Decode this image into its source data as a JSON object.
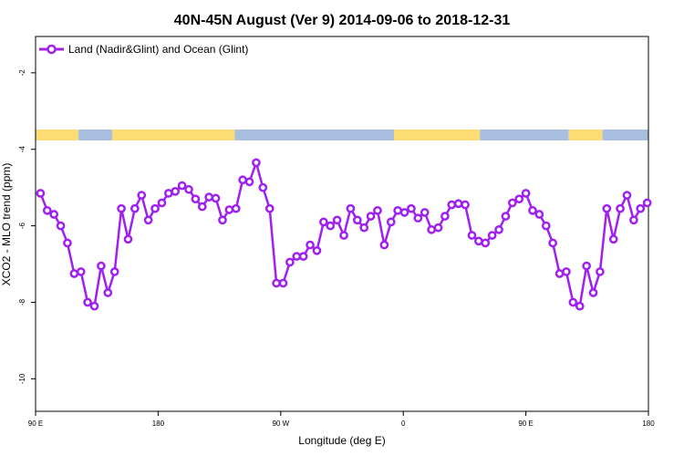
{
  "chart_data": {
    "type": "line",
    "title": "40N-45N August (Ver 9)   2014-09-06 to 2018-12-31",
    "xlabel": "Longitude (deg E)",
    "ylabel": "XCO2 - MLO trend (ppm)",
    "xlim": [
      0,
      1
    ],
    "ylim": [
      -10.85,
      -1.05
    ],
    "x_ticks": [
      {
        "pos": 0.0,
        "label": "90 E"
      },
      {
        "pos": 0.2,
        "label": "180"
      },
      {
        "pos": 0.4,
        "label": "90 W"
      },
      {
        "pos": 0.6,
        "label": "0"
      },
      {
        "pos": 0.8,
        "label": "90 E"
      },
      {
        "pos": 1.0,
        "label": "180"
      }
    ],
    "y_ticks": [
      -2,
      -4,
      -6,
      -8,
      -10
    ],
    "legend": {
      "position": "top-left"
    },
    "line_color": "#a020f0",
    "land_color": "#fddd73",
    "ocean_color": "#a9bfdf",
    "land_ocean_band": [
      {
        "start": 0.0,
        "end": 0.07,
        "type": "land"
      },
      {
        "start": 0.07,
        "end": 0.125,
        "type": "ocean"
      },
      {
        "start": 0.125,
        "end": 0.325,
        "type": "land"
      },
      {
        "start": 0.325,
        "end": 0.585,
        "type": "ocean"
      },
      {
        "start": 0.585,
        "end": 0.725,
        "type": "land"
      },
      {
        "start": 0.725,
        "end": 0.87,
        "type": "ocean"
      },
      {
        "start": 0.87,
        "end": 0.925,
        "type": "land"
      },
      {
        "start": 0.925,
        "end": 1.0,
        "type": "ocean"
      }
    ],
    "series": [
      {
        "name": "Land (Nadir&Glint) and Ocean (Glint)",
        "x": [
          0.008,
          0.019,
          0.03,
          0.041,
          0.052,
          0.063,
          0.074,
          0.085,
          0.096,
          0.107,
          0.118,
          0.129,
          0.14,
          0.151,
          0.162,
          0.173,
          0.184,
          0.195,
          0.206,
          0.217,
          0.228,
          0.239,
          0.25,
          0.261,
          0.272,
          0.283,
          0.294,
          0.305,
          0.316,
          0.327,
          0.338,
          0.349,
          0.36,
          0.371,
          0.382,
          0.393,
          0.404,
          0.415,
          0.426,
          0.437,
          0.448,
          0.459,
          0.47,
          0.481,
          0.492,
          0.503,
          0.514,
          0.525,
          0.536,
          0.547,
          0.558,
          0.569,
          0.58,
          0.591,
          0.602,
          0.613,
          0.624,
          0.635,
          0.646,
          0.657,
          0.668,
          0.679,
          0.69,
          0.701,
          0.712,
          0.723,
          0.734,
          0.745,
          0.756,
          0.767,
          0.778,
          0.789,
          0.8,
          0.811,
          0.822,
          0.833,
          0.844,
          0.855,
          0.866,
          0.877,
          0.888,
          0.899,
          0.91,
          0.921,
          0.932,
          0.943,
          0.954,
          0.965,
          0.976,
          0.987,
          0.998
        ],
        "values": [
          -5.15,
          -5.6,
          -5.7,
          -6.0,
          -6.45,
          -7.25,
          -7.2,
          -8.0,
          -8.1,
          -7.05,
          -7.75,
          -7.2,
          -5.55,
          -6.35,
          -5.55,
          -5.2,
          -5.85,
          -5.55,
          -5.4,
          -5.15,
          -5.1,
          -4.95,
          -5.05,
          -5.3,
          -5.5,
          -5.25,
          -5.28,
          -5.85,
          -5.58,
          -5.55,
          -4.8,
          -4.85,
          -4.35,
          -5.0,
          -5.55,
          -7.5,
          -7.5,
          -6.95,
          -6.8,
          -6.8,
          -6.5,
          -6.65,
          -5.9,
          -6.0,
          -5.85,
          -6.25,
          -5.55,
          -5.85,
          -6.05,
          -5.75,
          -5.6,
          -6.5,
          -5.9,
          -5.6,
          -5.65,
          -5.55,
          -5.8,
          -5.65,
          -6.1,
          -6.05,
          -5.75,
          -5.45,
          -5.42,
          -5.45,
          -6.25,
          -6.4,
          -6.45,
          -6.25,
          -6.1,
          -5.75,
          -5.4,
          -5.3,
          -5.15,
          -5.6,
          -5.7,
          -6.0,
          -6.45,
          -7.25,
          -7.2,
          -8.0,
          -8.1,
          -7.05,
          -7.75,
          -7.2,
          -5.55,
          -6.35,
          -5.55,
          -5.2,
          -5.85,
          -5.55,
          -5.4
        ]
      }
    ]
  }
}
